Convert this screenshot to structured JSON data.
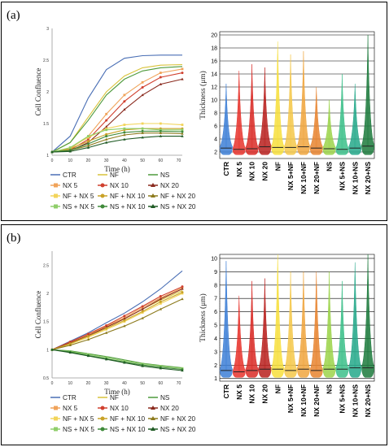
{
  "panels": [
    {
      "label": "(a)",
      "growth": {
        "ylabel": "Cell Confluence",
        "xlabel": "Time (h)",
        "yticks": [
          "1",
          "1.5",
          "2",
          "2.5",
          "3"
        ],
        "ylim": [
          1,
          3
        ],
        "xticks": [
          "0",
          "10",
          "20",
          "30",
          "40",
          "50",
          "60",
          "70"
        ],
        "xlim": [
          0,
          72
        ]
      },
      "violin": {
        "ylabel": "Thickness (μm)",
        "yticks": [
          "2",
          "4",
          "6",
          "8",
          "10",
          "12",
          "14",
          "16",
          "18",
          "20"
        ],
        "ylim": [
          1,
          20.5
        ]
      }
    },
    {
      "label": "(b)",
      "growth": {
        "ylabel": "Cell Confluence",
        "xlabel": "Time (h)",
        "yticks": [
          "0.5",
          "1",
          "1.5",
          "2",
          "2.5"
        ],
        "ylim": [
          0.5,
          2.75
        ],
        "xticks": [
          "0",
          "10",
          "20",
          "30",
          "40",
          "50",
          "60",
          "70"
        ],
        "xlim": [
          0,
          72
        ]
      },
      "violin": {
        "ylabel": "Thickness (μm)",
        "yticks": [
          "1",
          "2",
          "3",
          "4",
          "5",
          "6",
          "7",
          "8",
          "9",
          "10"
        ],
        "ylim": [
          0.8,
          10.3
        ]
      }
    }
  ],
  "legend": [
    {
      "name": "CTR",
      "color": "#4a6fb5",
      "marker": "line"
    },
    {
      "name": "NF",
      "color": "#d9c33a",
      "marker": "line"
    },
    {
      "name": "NS",
      "color": "#4e9a3c",
      "marker": "line"
    },
    {
      "name": "NX 5",
      "color": "#f0a35a",
      "marker": "square"
    },
    {
      "name": "NX 10",
      "color": "#d0402f",
      "marker": "circle"
    },
    {
      "name": "NX 20",
      "color": "#8a2a1e",
      "marker": "triangle"
    },
    {
      "name": "NF + NX 5",
      "color": "#f2d45a",
      "marker": "square"
    },
    {
      "name": "NF + NX 10",
      "color": "#c9a227",
      "marker": "circle"
    },
    {
      "name": "NF + NX 20",
      "color": "#8c7a1c",
      "marker": "triangle"
    },
    {
      "name": "NS + NX 5",
      "color": "#8fce6a",
      "marker": "square"
    },
    {
      "name": "NS + NX 10",
      "color": "#3f8a3a",
      "marker": "circle"
    },
    {
      "name": "NS + NX 20",
      "color": "#1f5a24",
      "marker": "triangle"
    }
  ],
  "violin_categories": [
    {
      "name": "CTR",
      "color": "#3d7fd6"
    },
    {
      "name": "NX 5",
      "color": "#e8332c"
    },
    {
      "name": "NX 10",
      "color": "#d92a26"
    },
    {
      "name": "NX 20",
      "color": "#b8201d"
    },
    {
      "name": "NF",
      "color": "#f7df3c"
    },
    {
      "name": "NX 5+NF",
      "color": "#f5c84a"
    },
    {
      "name": "NX 10+NF",
      "color": "#f0a63e"
    },
    {
      "name": "NX 20+NF",
      "color": "#e8842f"
    },
    {
      "name": "NS",
      "color": "#9cd44a"
    },
    {
      "name": "NX 5+NS",
      "color": "#3cc08a"
    },
    {
      "name": "NX 10+NS",
      "color": "#25a88a"
    },
    {
      "name": "NX 20+NS",
      "color": "#1c7a3c"
    }
  ],
  "chart_data": [
    {
      "type": "line",
      "xlabel": "Time (h)",
      "ylabel": "Cell Confluence",
      "xlim": [
        0,
        72
      ],
      "ylim": [
        1,
        3
      ],
      "grid": false,
      "legend_position": "bottom",
      "series": [
        {
          "name": "CTR",
          "x": [
            0,
            10,
            20,
            30,
            40,
            50,
            60,
            72
          ],
          "values": [
            1.05,
            1.3,
            1.9,
            2.35,
            2.53,
            2.57,
            2.58,
            2.58
          ]
        },
        {
          "name": "NF",
          "x": [
            0,
            10,
            20,
            30,
            40,
            50,
            60,
            72
          ],
          "values": [
            1.05,
            1.2,
            1.6,
            2.0,
            2.25,
            2.38,
            2.42,
            2.43
          ]
        },
        {
          "name": "NS",
          "x": [
            0,
            10,
            20,
            30,
            40,
            50,
            60,
            72
          ],
          "values": [
            1.05,
            1.2,
            1.55,
            1.95,
            2.2,
            2.33,
            2.38,
            2.4
          ]
        },
        {
          "name": "NX 5",
          "x": [
            0,
            10,
            20,
            30,
            40,
            50,
            60,
            72
          ],
          "values": [
            1.05,
            1.1,
            1.3,
            1.65,
            1.95,
            2.15,
            2.3,
            2.36
          ]
        },
        {
          "name": "NX 10",
          "x": [
            0,
            10,
            20,
            30,
            40,
            50,
            60,
            72
          ],
          "values": [
            1.05,
            1.08,
            1.25,
            1.55,
            1.85,
            2.07,
            2.23,
            2.3
          ]
        },
        {
          "name": "NX 20",
          "x": [
            0,
            10,
            20,
            30,
            40,
            50,
            60,
            72
          ],
          "values": [
            1.05,
            1.07,
            1.2,
            1.45,
            1.72,
            1.95,
            2.12,
            2.2
          ]
        },
        {
          "name": "NF + NX 5",
          "x": [
            0,
            10,
            20,
            30,
            40,
            50,
            60,
            72
          ],
          "values": [
            1.05,
            1.12,
            1.28,
            1.42,
            1.48,
            1.5,
            1.5,
            1.48
          ]
        },
        {
          "name": "NF + NX 10",
          "x": [
            0,
            10,
            20,
            30,
            40,
            50,
            60,
            72
          ],
          "values": [
            1.05,
            1.1,
            1.22,
            1.33,
            1.4,
            1.42,
            1.42,
            1.42
          ]
        },
        {
          "name": "NF + NX 20",
          "x": [
            0,
            10,
            20,
            30,
            40,
            50,
            60,
            72
          ],
          "values": [
            1.05,
            1.08,
            1.15,
            1.25,
            1.32,
            1.35,
            1.35,
            1.34
          ]
        },
        {
          "name": "NS + NX 5",
          "x": [
            0,
            10,
            20,
            30,
            40,
            50,
            60,
            72
          ],
          "values": [
            1.05,
            1.12,
            1.3,
            1.4,
            1.42,
            1.42,
            1.4,
            1.4
          ]
        },
        {
          "name": "NS + NX 10",
          "x": [
            0,
            10,
            20,
            30,
            40,
            50,
            60,
            72
          ],
          "values": [
            1.05,
            1.08,
            1.18,
            1.3,
            1.36,
            1.38,
            1.38,
            1.37
          ]
        },
        {
          "name": "NS + NX 20",
          "x": [
            0,
            10,
            20,
            30,
            40,
            50,
            60,
            72
          ],
          "values": [
            1.05,
            1.06,
            1.12,
            1.2,
            1.25,
            1.28,
            1.3,
            1.3
          ]
        }
      ]
    },
    {
      "type": "violin",
      "ylabel": "Thickness (μm)",
      "ylim": [
        1,
        20.5
      ],
      "grid": true,
      "categories": [
        "CTR",
        "NX 5",
        "NX 10",
        "NX 20",
        "NF",
        "NX 5+NF",
        "NX 10+NF",
        "NX 20+NF",
        "NS",
        "NX 5+NS",
        "NX 10+NS",
        "NX 20+NS"
      ],
      "medians": [
        2.6,
        2.4,
        2.5,
        2.8,
        2.7,
        2.7,
        2.8,
        2.6,
        2.5,
        2.4,
        2.6,
        2.9
      ],
      "maxima": [
        12.5,
        14.5,
        15.5,
        15.0,
        19.0,
        17.0,
        17.5,
        12.0,
        10.0,
        14.0,
        12.5,
        20.0
      ]
    },
    {
      "type": "line",
      "xlabel": "Time (h)",
      "ylabel": "Cell Confluence",
      "xlim": [
        0,
        72
      ],
      "ylim": [
        0.5,
        2.75
      ],
      "grid": false,
      "legend_position": "bottom",
      "series": [
        {
          "name": "CTR",
          "x": [
            0,
            10,
            20,
            30,
            40,
            50,
            60,
            72
          ],
          "values": [
            1.0,
            1.15,
            1.3,
            1.48,
            1.65,
            1.85,
            2.08,
            2.4
          ]
        },
        {
          "name": "NF",
          "x": [
            0,
            10,
            20,
            30,
            40,
            50,
            60,
            72
          ],
          "values": [
            1.0,
            1.12,
            1.25,
            1.4,
            1.55,
            1.72,
            1.88,
            2.05
          ]
        },
        {
          "name": "NS",
          "x": [
            0,
            10,
            20,
            30,
            40,
            50,
            60,
            72
          ],
          "values": [
            1.0,
            0.98,
            0.93,
            0.88,
            0.82,
            0.76,
            0.72,
            0.68
          ]
        },
        {
          "name": "NX 5",
          "x": [
            0,
            10,
            20,
            30,
            40,
            50,
            60,
            72
          ],
          "values": [
            1.0,
            1.13,
            1.27,
            1.42,
            1.57,
            1.75,
            1.92,
            2.1
          ]
        },
        {
          "name": "NX 10",
          "x": [
            0,
            10,
            20,
            30,
            40,
            50,
            60,
            72
          ],
          "values": [
            1.0,
            1.14,
            1.28,
            1.43,
            1.6,
            1.77,
            1.95,
            2.12
          ]
        },
        {
          "name": "NX 20",
          "x": [
            0,
            10,
            20,
            30,
            40,
            50,
            60,
            72
          ],
          "values": [
            1.0,
            1.12,
            1.25,
            1.4,
            1.55,
            1.72,
            1.9,
            2.08
          ]
        },
        {
          "name": "NF + NX 5",
          "x": [
            0,
            10,
            20,
            30,
            40,
            50,
            60,
            72
          ],
          "values": [
            1.0,
            1.1,
            1.22,
            1.36,
            1.5,
            1.66,
            1.82,
            2.0
          ]
        },
        {
          "name": "NF + NX 10",
          "x": [
            0,
            10,
            20,
            30,
            40,
            50,
            60,
            72
          ],
          "values": [
            1.0,
            1.11,
            1.24,
            1.38,
            1.52,
            1.68,
            1.85,
            2.02
          ]
        },
        {
          "name": "NF + NX 20",
          "x": [
            0,
            10,
            20,
            30,
            40,
            50,
            60,
            72
          ],
          "values": [
            1.0,
            1.08,
            1.18,
            1.3,
            1.42,
            1.56,
            1.72,
            1.9
          ]
        },
        {
          "name": "NS + NX 5",
          "x": [
            0,
            10,
            20,
            30,
            40,
            50,
            60,
            72
          ],
          "values": [
            1.0,
            0.97,
            0.92,
            0.86,
            0.8,
            0.75,
            0.71,
            0.67
          ]
        },
        {
          "name": "NS + NX 10",
          "x": [
            0,
            10,
            20,
            30,
            40,
            50,
            60,
            72
          ],
          "values": [
            1.0,
            0.96,
            0.9,
            0.84,
            0.78,
            0.73,
            0.69,
            0.65
          ]
        },
        {
          "name": "NS + NX 20",
          "x": [
            0,
            10,
            20,
            30,
            40,
            50,
            60,
            72
          ],
          "values": [
            1.0,
            0.95,
            0.89,
            0.83,
            0.77,
            0.71,
            0.67,
            0.63
          ]
        }
      ]
    },
    {
      "type": "violin",
      "ylabel": "Thickness (μm)",
      "ylim": [
        0.8,
        10.3
      ],
      "grid": true,
      "categories": [
        "CTR",
        "NX 5",
        "NX 10",
        "NX 20",
        "NF",
        "NX 5+NF",
        "NX 10+NF",
        "NX 20+NF",
        "NS",
        "NX 5+NS",
        "NX 10+NS",
        "NX 20+NS"
      ],
      "medians": [
        1.6,
        1.5,
        1.6,
        1.7,
        1.7,
        1.6,
        1.7,
        1.6,
        1.7,
        1.7,
        1.8,
        1.8
      ],
      "maxima": [
        9.8,
        7.2,
        8.3,
        8.5,
        10.3,
        9.0,
        9.0,
        9.0,
        9.0,
        8.3,
        9.7,
        10.3
      ]
    }
  ]
}
